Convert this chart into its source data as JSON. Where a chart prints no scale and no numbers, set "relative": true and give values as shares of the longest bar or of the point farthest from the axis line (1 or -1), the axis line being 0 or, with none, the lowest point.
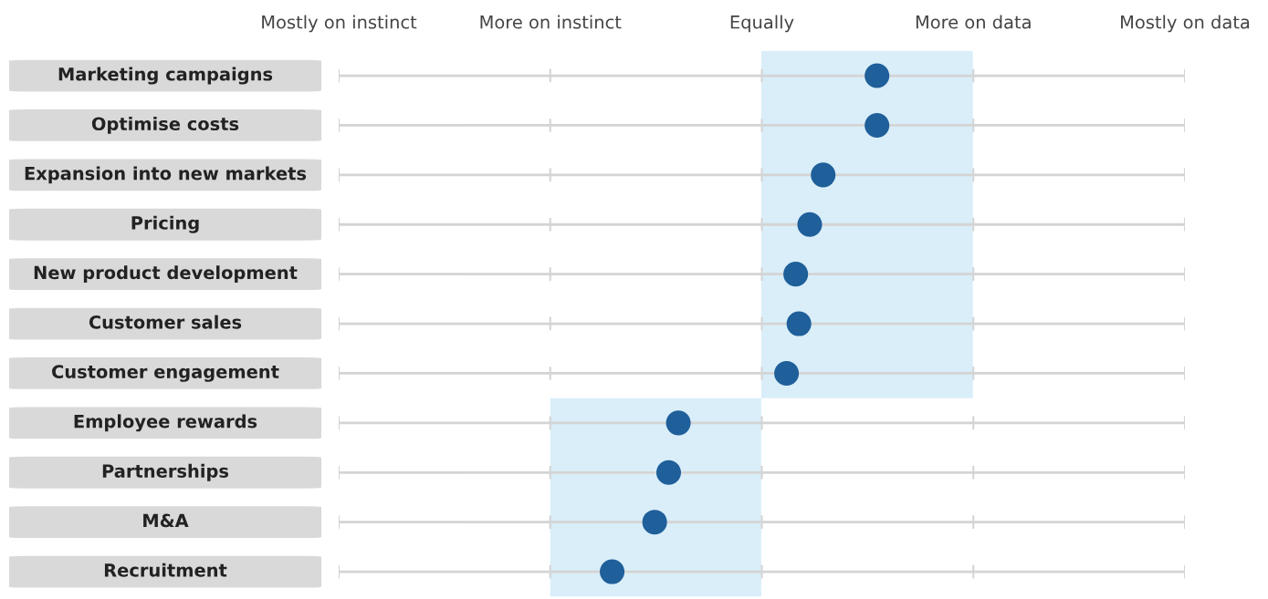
{
  "chart_data": {
    "type": "scatter",
    "orientation": "horizontal",
    "relative": true,
    "categories": [
      "Marketing campaigns",
      "Optimise costs",
      "Expansion into new markets",
      "Pricing",
      "New product development",
      "Customer sales",
      "Customer engagement",
      "Employee rewards",
      "Partnerships",
      "M&A",
      "Recruitment"
    ],
    "series": [
      {
        "color": "#1f5f9a",
        "values": [
          1,
          1,
          0.9,
          0.875,
          0.849,
          0.855,
          0.832,
          0.631,
          0.613,
          0.587,
          0.508
        ]
      }
    ],
    "annotations": [
      "Mostly on instinct",
      "More on instinct",
      "Equally",
      "More on data",
      "Mostly on data"
    ],
    "bands": [
      {
        "axis": "x",
        "from": 0.785,
        "to": 1.178,
        "color": "#d9eef9"
      },
      {
        "axis": "x",
        "from": 0.393,
        "to": 0.785,
        "color": "#d9eef9"
      }
    ],
    "grid": "y",
    "marker": "circle"
  }
}
